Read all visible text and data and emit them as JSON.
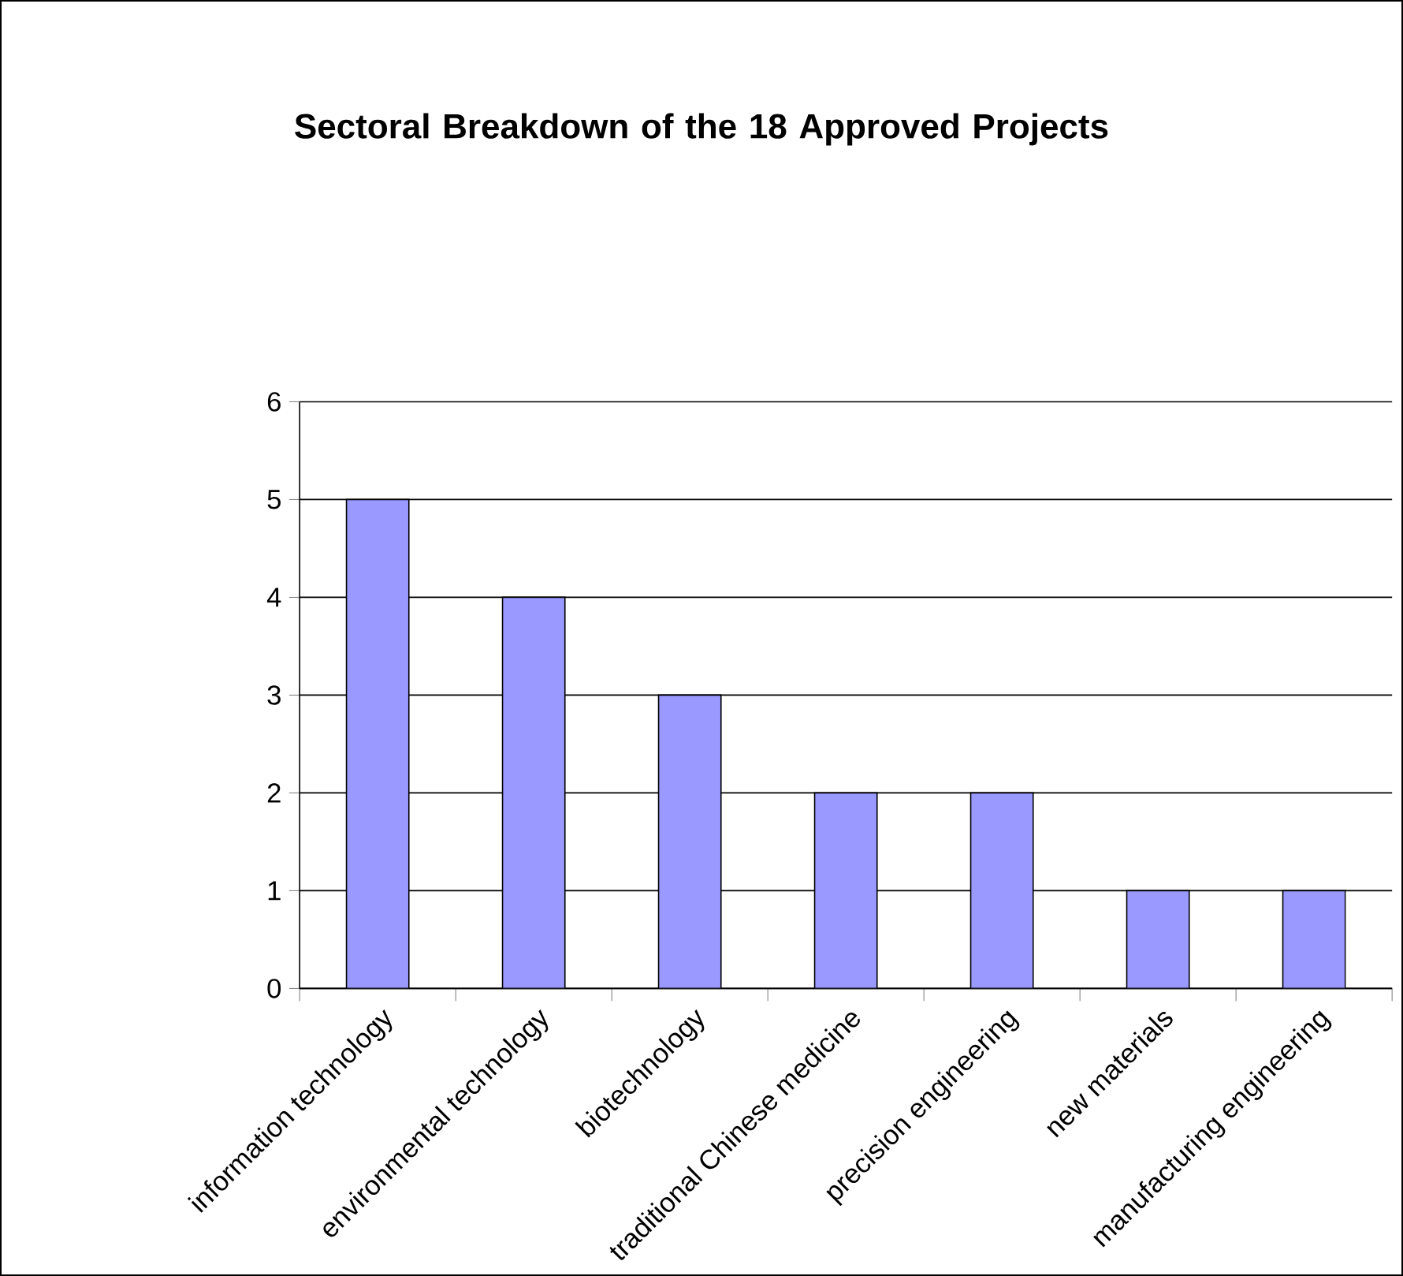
{
  "chart_data": {
    "type": "bar",
    "title": "Sectoral Breakdown of the 18 Approved Projects",
    "categories": [
      "information technology",
      "environmental technology",
      "biotechnology",
      "traditional Chinese medicine",
      "precision engineering",
      "new materials",
      "manufacturing engineering"
    ],
    "values": [
      5,
      4,
      3,
      2,
      2,
      1,
      1
    ],
    "color": "#9999ff",
    "ylim": [
      0,
      6
    ],
    "yticks": [
      0,
      1,
      2,
      3,
      4,
      5,
      6
    ],
    "grid": "y"
  }
}
